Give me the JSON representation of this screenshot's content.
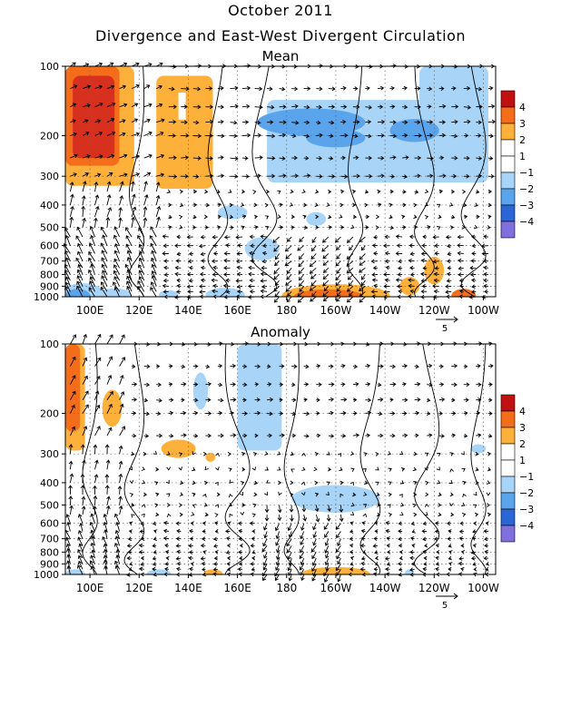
{
  "title": "October 2011",
  "subtitle": "Divergence and East-West Divergent Circulation",
  "colors": {
    "pos4": "#d7301f",
    "pos3": "#f46d1a",
    "pos2": "#fdb03a",
    "pos1": "#ffffff",
    "neg1": "#ffffff",
    "neg2": "#a8d4f7",
    "neg3": "#5aa4ec",
    "neg4": "#2b66d6",
    "neg5": "#8070dd",
    "pos5": "#c01010"
  },
  "chart_data": [
    {
      "type": "heatmap",
      "panel_title": "Mean",
      "x_ticks": [
        "100E",
        "120E",
        "140E",
        "160E",
        "180",
        "160W",
        "140W",
        "120W",
        "100W"
      ],
      "y_ticks": [
        "100",
        "200",
        "300",
        "400",
        "500",
        "600",
        "700",
        "800",
        "900",
        "1000"
      ],
      "y_scale": "log",
      "xlim_deg_east": [
        90,
        265
      ],
      "ylim_hPa": [
        1000,
        100
      ],
      "colorbar_labels": [
        "4",
        "3",
        "2",
        "1",
        "−1",
        "−2",
        "−3",
        "−4"
      ],
      "vector_reference": "5",
      "grid": "dotted"
    },
    {
      "type": "heatmap",
      "panel_title": "Anomaly",
      "x_ticks": [
        "100E",
        "120E",
        "140E",
        "160E",
        "180",
        "160W",
        "140W",
        "120W",
        "100W"
      ],
      "y_ticks": [
        "100",
        "200",
        "300",
        "400",
        "500",
        "600",
        "700",
        "800",
        "900",
        "1000"
      ],
      "y_scale": "log",
      "xlim_deg_east": [
        90,
        265
      ],
      "ylim_hPa": [
        1000,
        100
      ],
      "colorbar_labels": [
        "4",
        "3",
        "2",
        "1",
        "−1",
        "−2",
        "−3",
        "−4"
      ],
      "vector_reference": "5",
      "grid": "dotted"
    }
  ]
}
